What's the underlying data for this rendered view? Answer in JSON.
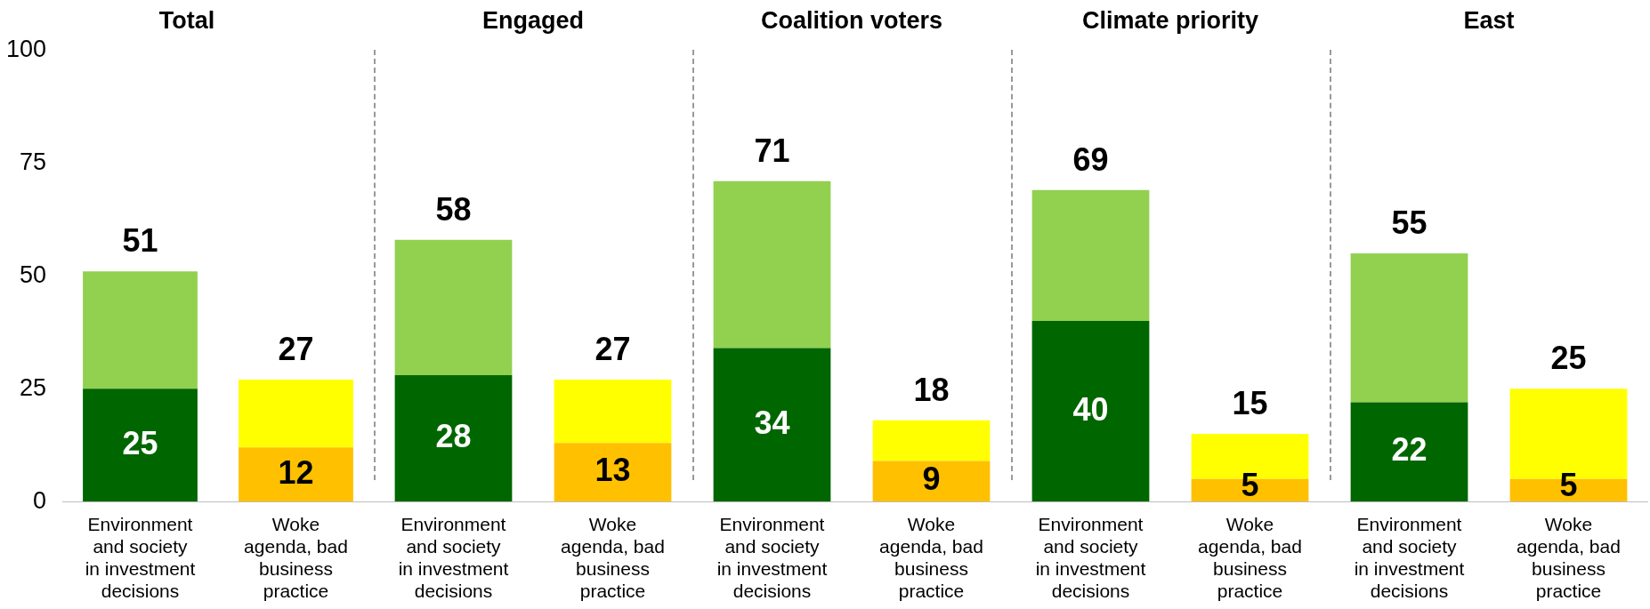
{
  "chart_data": [
    {
      "type": "bar",
      "title": "Total",
      "categories": [
        "Environment and society in investment decisions",
        "Woke agenda, bad business practice"
      ],
      "stacked": true,
      "ylim": [
        0,
        100
      ],
      "yticks": [
        0,
        25,
        50,
        75,
        100
      ],
      "totals": [
        "51",
        "27"
      ],
      "series": [
        {
          "colors": [
            "#006600",
            "#ffc000"
          ],
          "values": [
            25,
            12
          ],
          "value_labels": [
            "25",
            "12"
          ]
        },
        {
          "colors": [
            "#92d050",
            "#ffff00"
          ],
          "values": [
            26,
            15
          ]
        }
      ]
    },
    {
      "type": "bar",
      "title": "Engaged",
      "categories": [
        "Environment and society in investment decisions",
        "Woke agenda, bad business practice"
      ],
      "stacked": true,
      "ylim": [
        0,
        100
      ],
      "yticks": [
        0,
        25,
        50,
        75,
        100
      ],
      "tick_labels": "x",
      "totals": [
        "58",
        "27"
      ],
      "series": [
        {
          "colors": [
            "#006600",
            "#ffc000"
          ],
          "values": [
            28,
            13
          ],
          "value_labels": [
            "28",
            "13"
          ]
        },
        {
          "colors": [
            "#92d050",
            "#ffff00"
          ],
          "values": [
            30,
            14
          ]
        }
      ]
    },
    {
      "type": "bar",
      "title": "Coalition voters",
      "categories": [
        "Environment and society in investment decisions",
        "Woke agenda, bad business practice"
      ],
      "stacked": true,
      "ylim": [
        0,
        100
      ],
      "yticks": [
        0,
        25,
        50,
        75,
        100
      ],
      "tick_labels": "x",
      "totals": [
        "71",
        "18"
      ],
      "series": [
        {
          "colors": [
            "#006600",
            "#ffc000"
          ],
          "values": [
            34,
            9
          ],
          "value_labels": [
            "34",
            "9"
          ]
        },
        {
          "colors": [
            "#92d050",
            "#ffff00"
          ],
          "values": [
            37,
            9
          ]
        }
      ]
    },
    {
      "type": "bar",
      "title": "Climate priority",
      "categories": [
        "Environment and society in investment decisions",
        "Woke agenda, bad business practice"
      ],
      "stacked": true,
      "ylim": [
        0,
        100
      ],
      "yticks": [
        0,
        25,
        50,
        75,
        100
      ],
      "tick_labels": "x",
      "totals": [
        "69",
        "15"
      ],
      "series": [
        {
          "colors": [
            "#006600",
            "#ffc000"
          ],
          "values": [
            40,
            5
          ],
          "value_labels": [
            "40",
            "5"
          ]
        },
        {
          "colors": [
            "#92d050",
            "#ffff00"
          ],
          "values": [
            29,
            10
          ]
        }
      ]
    },
    {
      "type": "bar",
      "title": "East",
      "categories": [
        "Environment and society in investment decisions",
        "Woke agenda, bad business practice"
      ],
      "stacked": true,
      "ylim": [
        0,
        100
      ],
      "yticks": [
        0,
        25,
        50,
        75,
        100
      ],
      "tick_labels": "x",
      "totals": [
        "55",
        "25"
      ],
      "series": [
        {
          "colors": [
            "#006600",
            "#ffc000"
          ],
          "values": [
            22,
            5
          ],
          "value_labels": [
            "22",
            "5"
          ]
        },
        {
          "colors": [
            "#92d050",
            "#ffff00"
          ],
          "values": [
            33,
            20
          ]
        }
      ]
    }
  ]
}
